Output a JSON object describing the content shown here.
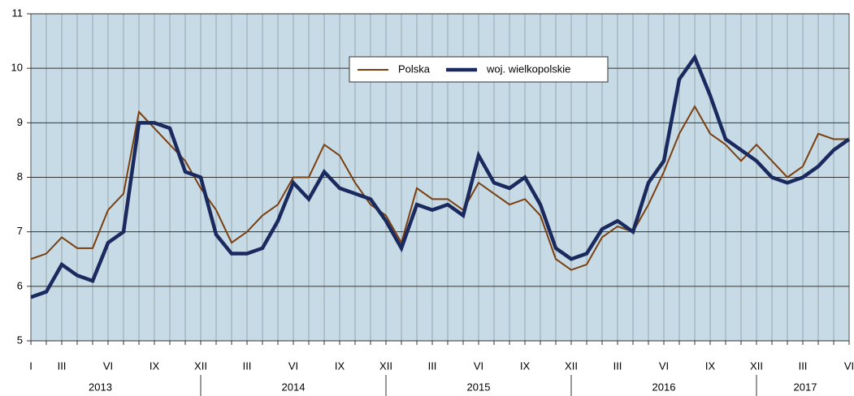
{
  "chart_data": {
    "type": "line",
    "categories": [
      "I",
      null,
      "III",
      null,
      null,
      "VI",
      null,
      null,
      "IX",
      null,
      null,
      "XII",
      null,
      null,
      "III",
      null,
      null,
      "VI",
      null,
      null,
      "IX",
      null,
      null,
      "XII",
      null,
      null,
      "III",
      null,
      null,
      "VI",
      null,
      null,
      "IX",
      null,
      null,
      "XII",
      null,
      null,
      "III",
      null,
      null,
      "VI",
      null,
      null,
      "IX",
      null,
      null,
      "XII",
      null,
      null,
      "III",
      null,
      null,
      "VI"
    ],
    "years": [
      "2013",
      "2014",
      "2015",
      "2016",
      "2017"
    ],
    "series": [
      {
        "name": "Polska",
        "color": "#7b3f10",
        "values": [
          6.5,
          6.6,
          6.9,
          6.7,
          6.7,
          7.4,
          7.7,
          9.2,
          8.9,
          8.6,
          8.3,
          7.8,
          7.4,
          6.8,
          7.0,
          7.3,
          7.5,
          8.0,
          8.0,
          8.6,
          8.4,
          7.9,
          7.5,
          7.3,
          6.8,
          7.8,
          7.6,
          7.6,
          7.4,
          7.9,
          7.7,
          7.5,
          7.6,
          7.3,
          6.5,
          6.3,
          6.4,
          6.9,
          7.1,
          7.0,
          7.5,
          8.1,
          8.8,
          9.3,
          8.8,
          8.6,
          8.3,
          8.6,
          8.3,
          8.0,
          8.2,
          8.8,
          8.7,
          8.7
        ]
      },
      {
        "name": "woj. wielkopolskie",
        "color": "#1a2a5e",
        "values": [
          5.8,
          5.9,
          6.4,
          6.2,
          6.1,
          6.8,
          7.0,
          9.0,
          9.0,
          8.9,
          8.1,
          8.0,
          6.95,
          6.6,
          6.6,
          6.7,
          7.2,
          7.9,
          7.6,
          8.1,
          7.8,
          7.7,
          7.6,
          7.2,
          6.7,
          7.5,
          7.4,
          7.5,
          7.3,
          8.4,
          7.9,
          7.8,
          8.0,
          7.5,
          6.7,
          6.5,
          6.6,
          7.05,
          7.2,
          7.0,
          7.9,
          8.3,
          9.8,
          10.2,
          9.5,
          8.7,
          8.5,
          8.3,
          8.0,
          7.9,
          8.0,
          8.2,
          8.5,
          8.7
        ]
      }
    ],
    "ylim": [
      5,
      11
    ],
    "yticks": [
      5,
      6,
      7,
      8,
      9,
      10,
      11
    ],
    "grid": true
  }
}
